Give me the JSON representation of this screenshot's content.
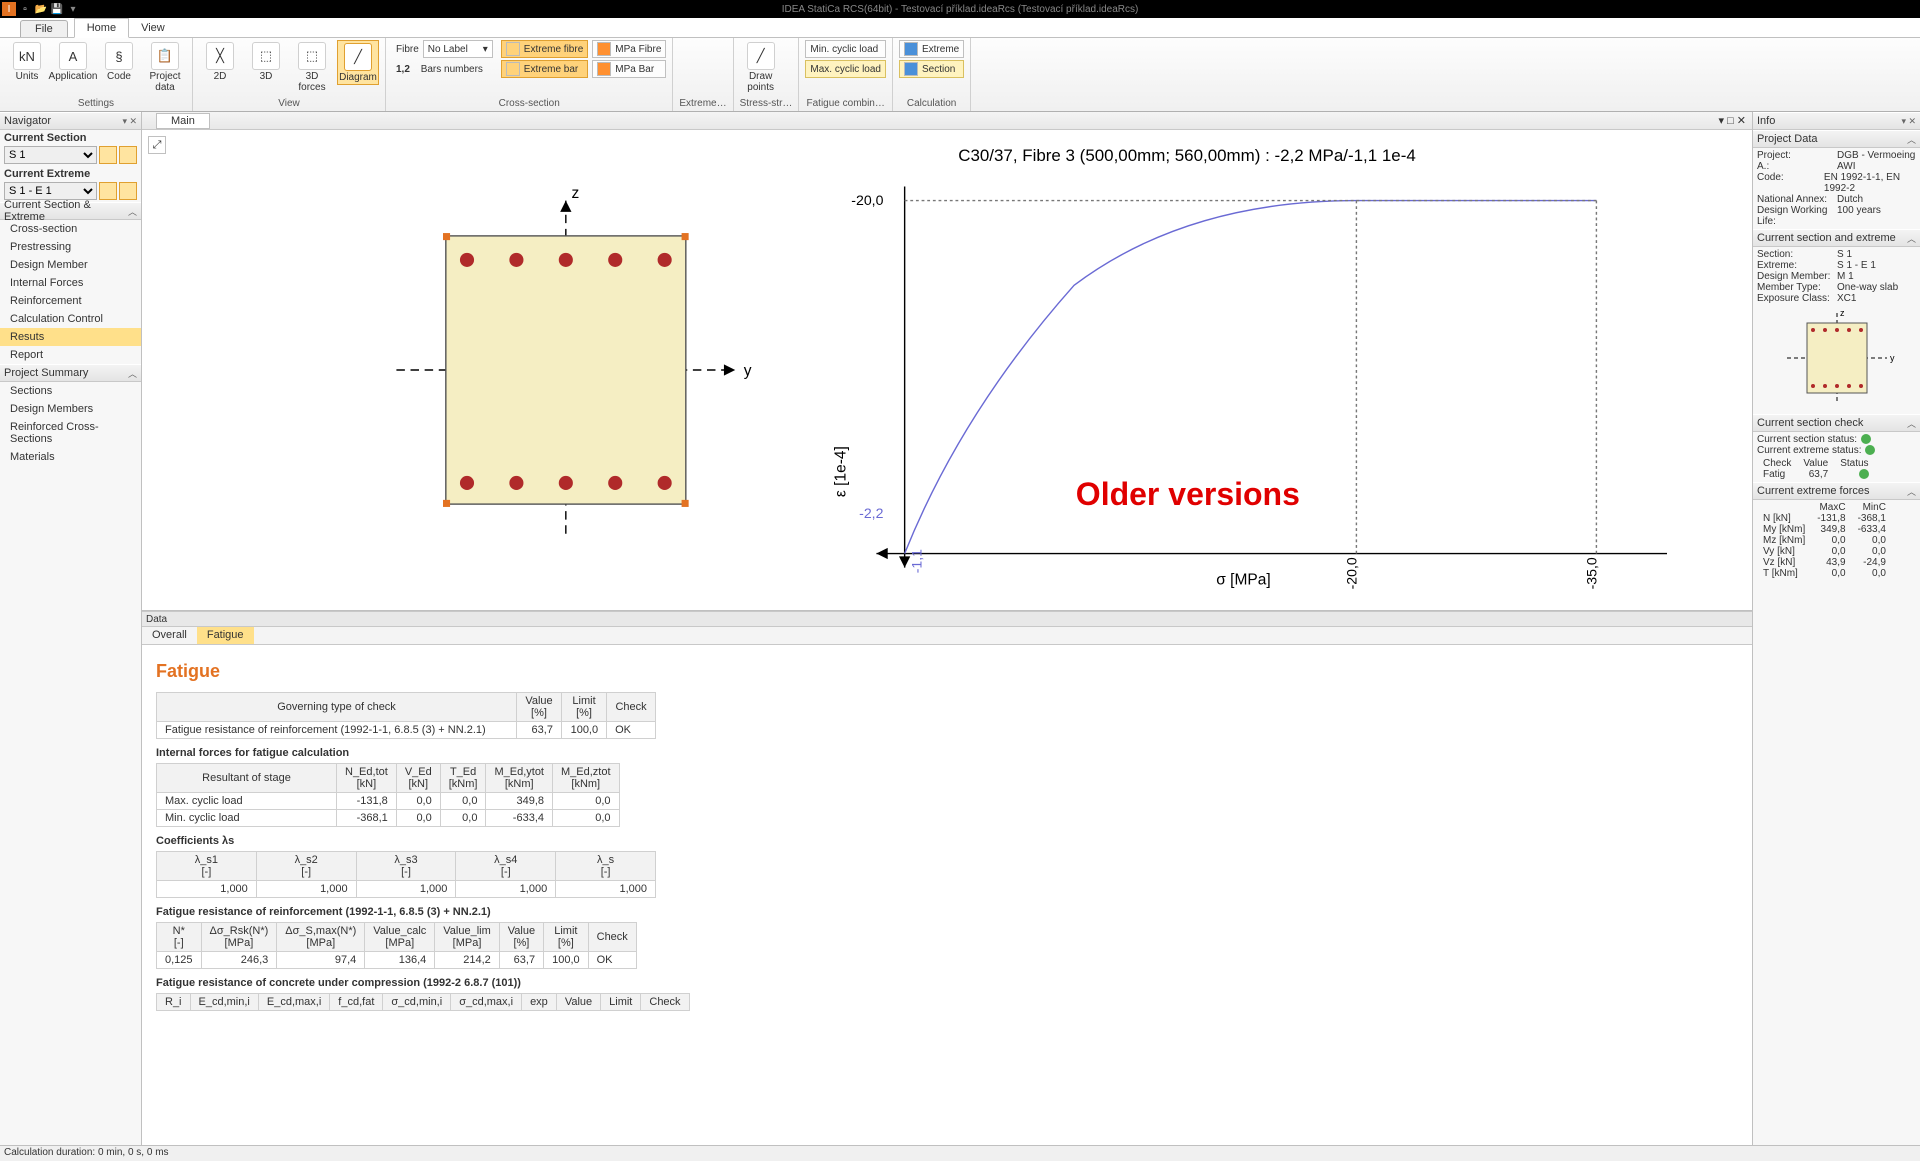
{
  "titlebar": {
    "title": "IDEA StatiCa RCS(64bit) - Testovací příklad.ideaRcs (Testovací příklad.ideaRcs)"
  },
  "ribbon": {
    "tab_file": "File",
    "tab_home": "Home",
    "tab_view": "View",
    "groups": {
      "settings": {
        "label": "Settings",
        "units": "Units",
        "application": "Application",
        "code": "Code",
        "project_data": "Project\ndata"
      },
      "view": {
        "label": "View",
        "d2": "2D",
        "d3": "3D",
        "d3forces": "3D\nforces",
        "diagram": "Diagram"
      },
      "cross_section": {
        "label": "Cross-section",
        "fibre": "Fibre",
        "fibre_dd": "No Label",
        "bars_numbers": "Bars numbers",
        "extreme_fibre": "Extreme fibre",
        "extreme_bar": "Extreme bar",
        "mpa_fibre": "MPa Fibre",
        "mpa_bar": "MPa Bar"
      },
      "extreme": {
        "label": "Extreme…"
      },
      "stress": {
        "label": "Stress-str…",
        "draw_points": "Draw\npoints"
      },
      "fatigue": {
        "label": "Fatigue combin…",
        "min_cyclic": "Min. cyclic load",
        "max_cyclic": "Max. cyclic load"
      },
      "calculation": {
        "label": "Calculation",
        "extreme": "Extreme",
        "section": "Section"
      }
    }
  },
  "navigator": {
    "title": "Navigator",
    "current_section_lbl": "Current Section",
    "current_section_val": "S 1",
    "current_extreme_lbl": "Current Extreme",
    "current_extreme_val": "S 1 - E 1",
    "grp_section_extreme": "Current Section & Extreme",
    "items_se": [
      "Cross-section",
      "Prestressing",
      "Design Member",
      "Internal Forces",
      "Reinforcement",
      "Calculation Control",
      "Resuts",
      "Report"
    ],
    "se_active_index": 6,
    "grp_project_summary": "Project Summary",
    "items_ps": [
      "Sections",
      "Design Members",
      "Reinforced Cross-Sections",
      "Materials"
    ]
  },
  "canvas": {
    "tab_main": "Main",
    "chart_title": "C30/37, Fibre 3 (500,00mm; 560,00mm) : -2,2 MPa/-1,1 1e-4",
    "axis_x_label": "σ [MPa]",
    "axis_y_label": "ε [1e-4]",
    "tick_top": "-20,0",
    "tick_left1": "-2,2",
    "tick_bot1": "-1,1",
    "tick_x1": "-20,0",
    "tick_x2": "-35,0",
    "older_versions": "Older versions",
    "section_color": "#f5eec3",
    "section_border": "#555",
    "rebar_color": "#b02a2a",
    "curve_color": "#6a6ad4"
  },
  "data": {
    "panel_title": "Data",
    "tab_overall": "Overall",
    "tab_fatigue": "Fatigue",
    "heading": "Fatigue",
    "gov_check": {
      "h_type": "Governing type of check",
      "h_value": "Value\n[%]",
      "h_limit": "Limit\n[%]",
      "h_check": "Check",
      "row_label": "Fatigue resistance of reinforcement (1992-1-1, 6.8.5 (3) + NN.2.1)",
      "value": "63,7",
      "limit": "100,0",
      "check": "OK"
    },
    "h_int_forces": "Internal forces for fatigue calculation",
    "int_forces": {
      "cols": [
        "Resultant of stage",
        "N_Ed,tot\n[kN]",
        "V_Ed\n[kN]",
        "T_Ed\n[kNm]",
        "M_Ed,ytot\n[kNm]",
        "M_Ed,ztot\n[kNm]"
      ],
      "rows": [
        [
          "Max. cyclic load",
          "-131,8",
          "0,0",
          "0,0",
          "349,8",
          "0,0"
        ],
        [
          "Min. cyclic load",
          "-368,1",
          "0,0",
          "0,0",
          "-633,4",
          "0,0"
        ]
      ]
    },
    "h_coef": "Coefficients λs",
    "coef": {
      "cols": [
        "λ_s1\n[-]",
        "λ_s2\n[-]",
        "λ_s3\n[-]",
        "λ_s4\n[-]",
        "λ_s\n[-]"
      ],
      "row": [
        "1,000",
        "1,000",
        "1,000",
        "1,000",
        "1,000"
      ]
    },
    "h_fr_reinf": "Fatigue resistance of reinforcement (1992-1-1, 6.8.5 (3) + NN.2.1)",
    "fr_reinf": {
      "cols": [
        "N*\n[-]",
        "Δσ_Rsk(N*)\n[MPa]",
        "Δσ_S,max(N*)\n[MPa]",
        "Value_calc\n[MPa]",
        "Value_lim\n[MPa]",
        "Value\n[%]",
        "Limit\n[%]",
        "Check"
      ],
      "row": [
        "0,125",
        "246,3",
        "97,4",
        "136,4",
        "214,2",
        "63,7",
        "100,0",
        "OK"
      ]
    },
    "h_fr_conc": "Fatigue resistance of concrete under compression (1992-2 6.8.7 (101))",
    "fr_conc_cols": [
      "R_i",
      "E_cd,min,i",
      "E_cd,max,i",
      "f_cd,fat",
      "σ_cd,min,i",
      "σ_cd,max,i",
      "exp",
      "Value",
      "Limit",
      "Check"
    ]
  },
  "info": {
    "title": "Info",
    "project_data_hd": "Project Data",
    "project": {
      "k": "Project:",
      "v": "DGB - Vermoeing"
    },
    "author": {
      "k": "A.:",
      "v": "AWI"
    },
    "code": {
      "k": "Code:",
      "v": "EN 1992-1-1, EN 1992-2"
    },
    "annex": {
      "k": "National Annex:",
      "v": "Dutch"
    },
    "dwl": {
      "k": "Design Working Life:",
      "v": "100 years"
    },
    "cse_hd": "Current section and extreme",
    "cse": {
      "section": {
        "k": "Section:",
        "v": "S 1"
      },
      "extreme": {
        "k": "Extreme:",
        "v": "S 1 - E 1"
      },
      "member": {
        "k": "Design Member:",
        "v": "M 1"
      },
      "mtype": {
        "k": "Member Type:",
        "v": "One-way slab"
      },
      "exposure": {
        "k": "Exposure Class:",
        "v": "XC1"
      }
    },
    "check_hd": "Current section check",
    "check_status1": "Current section status:",
    "check_status2": "Current extreme status:",
    "check_cols": [
      "Check",
      "Value",
      "Status"
    ],
    "check_row": [
      "Fatig",
      "63,7",
      "ok"
    ],
    "forces_hd": "Current extreme forces",
    "forces_cols": [
      "",
      "MaxC",
      "MinC"
    ],
    "forces": [
      [
        "N [kN]",
        "-131,8",
        "-368,1"
      ],
      [
        "My [kNm]",
        "349,8",
        "-633,4"
      ],
      [
        "Mz [kNm]",
        "0,0",
        "0,0"
      ],
      [
        "Vy [kN]",
        "0,0",
        "0,0"
      ],
      [
        "Vz [kN]",
        "43,9",
        "-24,9"
      ],
      [
        "T [kNm]",
        "0,0",
        "0,0"
      ]
    ]
  },
  "status": "Calculation duration: 0 min, 0 s, 0 ms"
}
